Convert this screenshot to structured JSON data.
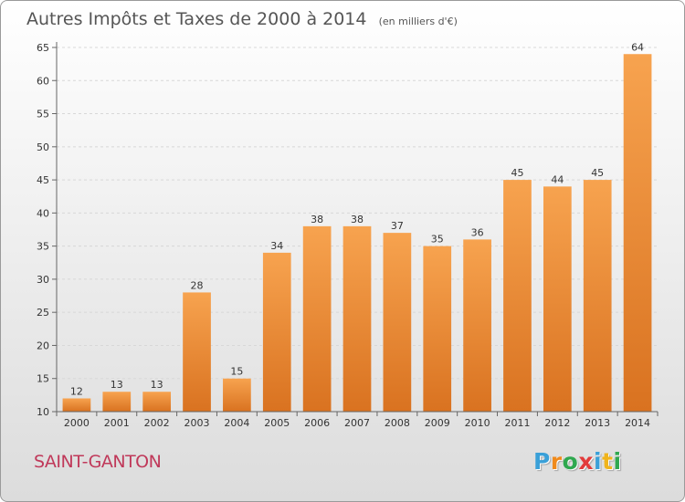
{
  "chart_data": {
    "type": "bar",
    "title": "Autres Impôts et Taxes de 2000 à 2014",
    "subtitle": "(en milliers d'€)",
    "categories": [
      "2000",
      "2001",
      "2002",
      "2003",
      "2004",
      "2005",
      "2006",
      "2007",
      "2008",
      "2009",
      "2010",
      "2011",
      "2012",
      "2013",
      "2014"
    ],
    "values": [
      12,
      13,
      13,
      28,
      15,
      34,
      38,
      38,
      37,
      35,
      36,
      45,
      44,
      45,
      64
    ],
    "ylim": [
      10,
      65
    ],
    "yticks": [
      10,
      15,
      20,
      25,
      30,
      35,
      40,
      45,
      50,
      55,
      60,
      65
    ],
    "grid": true,
    "bar_color_top": "#f7a34f",
    "bar_color_bottom": "#d97220"
  },
  "location": "SAINT-GANTON",
  "brand": {
    "letters": [
      "P",
      "r",
      "o",
      "x",
      "i",
      "t",
      "i"
    ],
    "colors": [
      "#3aa0d8",
      "#f08a1c",
      "#2fa84f",
      "#e23b3b",
      "#3aa0d8",
      "#f0b41c",
      "#2fa84f"
    ]
  }
}
